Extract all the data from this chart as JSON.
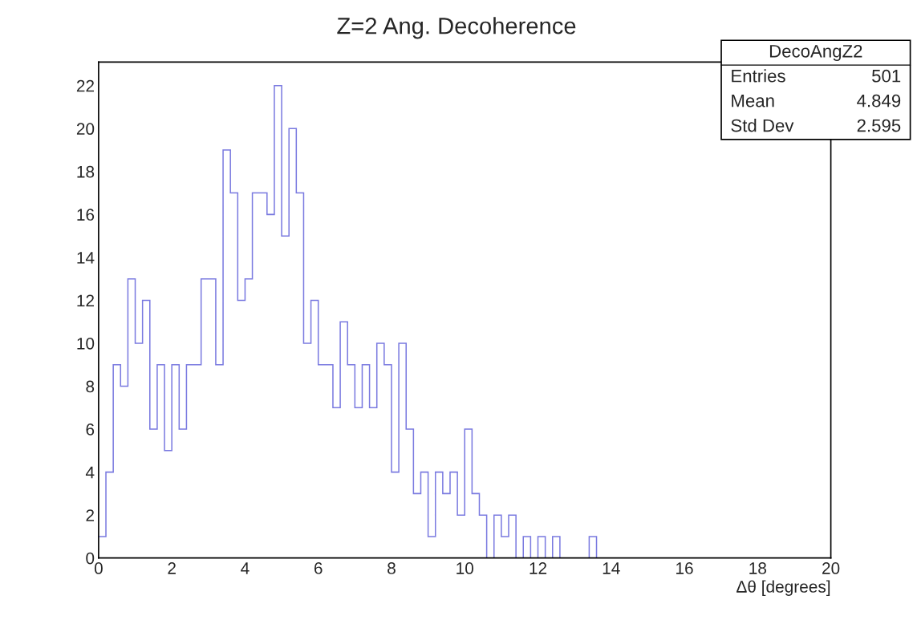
{
  "chart_data": {
    "type": "histogram",
    "title": "Z=2 Ang. Decoherence",
    "xlabel": "Δθ [degrees]",
    "color": "#7a7ae0",
    "bins": [
      0,
      0.2,
      0.4,
      0.6,
      0.8,
      1,
      1.2,
      1.4,
      1.6,
      1.8,
      2,
      2.2,
      2.4,
      2.6,
      2.8,
      3,
      3.2,
      3.4,
      3.6,
      3.8,
      4,
      4.2,
      4.4,
      4.6,
      4.8,
      5,
      5.2,
      5.4,
      5.6,
      5.8,
      6,
      6.2,
      6.4,
      6.6,
      6.8,
      7,
      7.2,
      7.4,
      7.6,
      7.8,
      8,
      8.2,
      8.4,
      8.6,
      8.8,
      9,
      9.2,
      9.4,
      9.6,
      9.8,
      10,
      10.2,
      10.4,
      10.6,
      10.8,
      11,
      11.2,
      11.4,
      11.6,
      11.8,
      12,
      12.2,
      12.4,
      12.6,
      12.8,
      13,
      13.2,
      13.4,
      13.6,
      13.8,
      14,
      14.2,
      14.4,
      14.6,
      14.8,
      15,
      15.2,
      15.4,
      15.6,
      15.8,
      16,
      16.2,
      16.4,
      16.6,
      16.8,
      17,
      17.2,
      17.4,
      17.6,
      17.8,
      18,
      18.2,
      18.4,
      18.6,
      18.8,
      19,
      19.2,
      19.4,
      19.6,
      19.8,
      20
    ],
    "values": [
      1,
      4,
      9,
      8,
      13,
      10,
      12,
      6,
      9,
      5,
      9,
      6,
      9,
      9,
      13,
      13,
      9,
      19,
      17,
      12,
      13,
      17,
      17,
      16,
      22,
      15,
      20,
      17,
      10,
      12,
      9,
      9,
      7,
      11,
      9,
      7,
      9,
      7,
      10,
      9,
      4,
      10,
      6,
      3,
      4,
      1,
      4,
      3,
      4,
      2,
      6,
      3,
      2,
      0,
      2,
      1,
      2,
      0,
      1,
      0,
      1,
      0,
      1,
      0,
      0,
      0,
      0,
      1,
      0,
      0,
      0,
      0,
      0,
      0,
      0,
      0,
      0,
      0,
      0,
      0,
      0,
      0,
      0,
      0,
      0,
      0,
      0,
      0,
      0,
      0,
      0,
      0,
      0,
      0,
      0,
      0,
      0,
      0,
      0,
      0
    ],
    "xlim": [
      0,
      20
    ],
    "xticks": [
      0,
      2,
      4,
      6,
      8,
      10,
      12,
      14,
      16,
      18,
      20
    ],
    "ylim": [
      0,
      23.1
    ],
    "yticks": [
      0,
      2,
      4,
      6,
      8,
      10,
      12,
      14,
      16,
      18,
      20,
      22
    ],
    "grid": false,
    "annotations": [
      "DecoAngZ2",
      "Entries",
      "501",
      "Mean",
      "4.849",
      "Std Dev",
      "2.595"
    ]
  }
}
